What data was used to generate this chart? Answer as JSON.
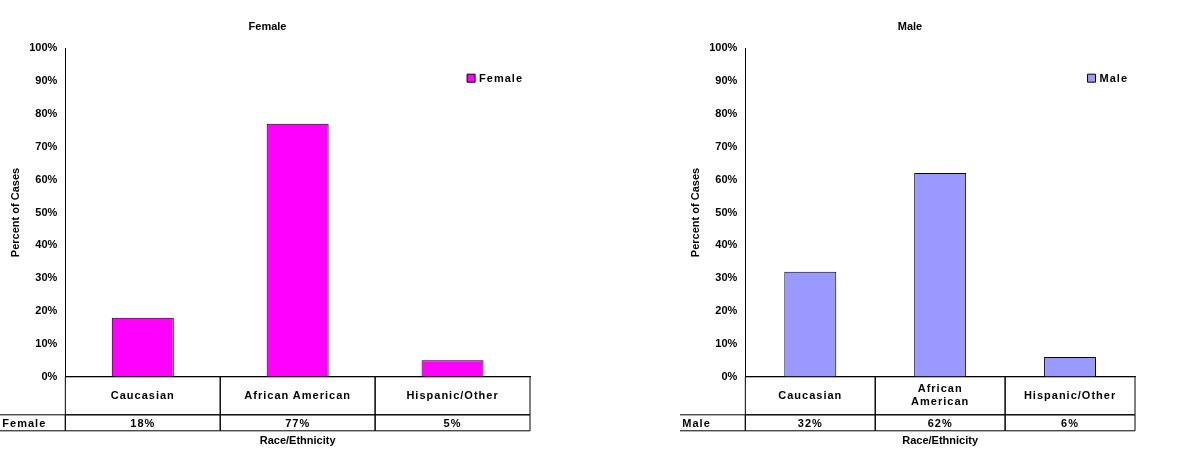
{
  "chart_data": [
    {
      "type": "bar",
      "title": "Female",
      "xlabel": "Race/Ethnicity",
      "ylabel": "Percent of Cases",
      "categories": [
        "Caucasian",
        "African American",
        "Hispanic/Other"
      ],
      "series": [
        {
          "name": "Female",
          "color": "#ff00ff",
          "values": [
            18,
            77,
            5
          ],
          "value_labels": [
            "18%",
            "77%",
            "5%"
          ]
        }
      ],
      "ylim": [
        0,
        100
      ],
      "yticks": [
        {
          "value": 0,
          "label": "0%"
        },
        {
          "value": 10,
          "label": "10%"
        },
        {
          "value": 20,
          "label": "20%"
        },
        {
          "value": 30,
          "label": "30%"
        },
        {
          "value": 40,
          "label": "40%"
        },
        {
          "value": 50,
          "label": "50%"
        },
        {
          "value": 60,
          "label": "60%"
        },
        {
          "value": 70,
          "label": "70%"
        },
        {
          "value": 80,
          "label": "80%"
        },
        {
          "value": 90,
          "label": "90%"
        },
        {
          "value": 100,
          "label": "100%"
        }
      ],
      "legend": "top right",
      "grid": false
    },
    {
      "type": "bar",
      "title": "Male",
      "xlabel": "Race/Ethnicity",
      "ylabel": "Percent of Cases",
      "categories": [
        "Caucasian",
        "African American",
        "Hispanic/Other"
      ],
      "series": [
        {
          "name": "Male",
          "color": "#9999ff",
          "values": [
            32,
            62,
            6
          ],
          "value_labels": [
            "32%",
            "62%",
            "6%"
          ]
        }
      ],
      "ylim": [
        0,
        100
      ],
      "yticks": [
        {
          "value": 0,
          "label": "0%"
        },
        {
          "value": 10,
          "label": "10%"
        },
        {
          "value": 20,
          "label": "20%"
        },
        {
          "value": 30,
          "label": "30%"
        },
        {
          "value": 40,
          "label": "40%"
        },
        {
          "value": 50,
          "label": "50%"
        },
        {
          "value": 60,
          "label": "60%"
        },
        {
          "value": 70,
          "label": "70%"
        },
        {
          "value": 80,
          "label": "80%"
        },
        {
          "value": 90,
          "label": "90%"
        },
        {
          "value": 100,
          "label": "100%"
        }
      ],
      "legend": "top right",
      "grid": false
    }
  ]
}
